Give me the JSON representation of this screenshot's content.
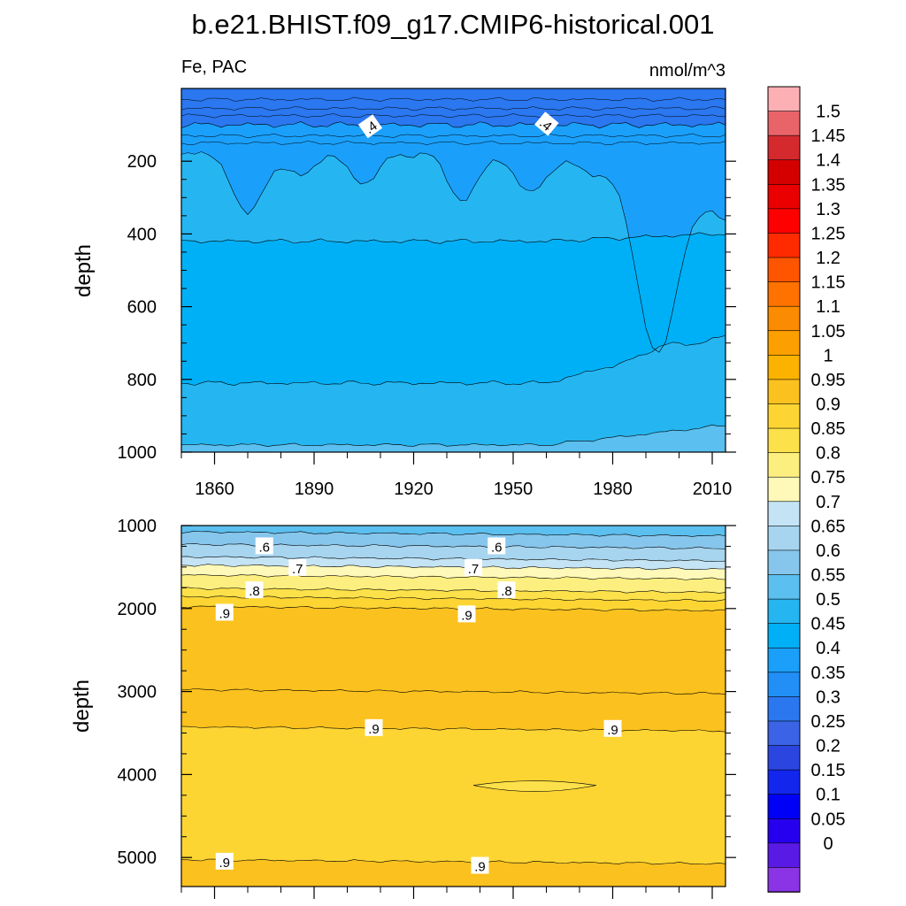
{
  "title": "b.e21.BHIST.f09_g17.CMIP6-historical.001",
  "chart_data": [
    {
      "type": "heatmap",
      "panel": "upper",
      "left_label": "Fe, PAC",
      "right_label": "nmol/m^3",
      "ylabel": "depth",
      "xlim": [
        1850,
        2014
      ],
      "ylim": [
        1000,
        0
      ],
      "x_ticks": [
        "1860",
        "1890",
        "1920",
        "1950",
        "1980",
        "2010"
      ],
      "y_ticks": [
        "200",
        "400",
        "600",
        "800",
        "1000"
      ],
      "contour_labels": [
        ".4",
        ".4"
      ],
      "bands": [
        {
          "from": 0,
          "to": 100,
          "value": 0.275
        },
        {
          "from": 100,
          "to": 180,
          "value": 0.35
        },
        {
          "from": 180,
          "to": 420,
          "value": 0.45
        },
        {
          "from": 420,
          "to": 810,
          "value": 0.4
        },
        {
          "from": 810,
          "to": 980,
          "value": 0.45
        },
        {
          "from": 980,
          "to": 1000,
          "value": 0.5
        }
      ]
    },
    {
      "type": "heatmap",
      "panel": "lower",
      "ylabel": "depth",
      "xlim": [
        1850,
        2014
      ],
      "ylim": [
        5350,
        1000
      ],
      "y_ticks": [
        "1000",
        "2000",
        "3000",
        "4000",
        "5000"
      ],
      "contour_labels": [
        ".6",
        ".6",
        ".7",
        ".7",
        ".8",
        ".8",
        ".9",
        ".9",
        ".9",
        ".9",
        ".9",
        ".9"
      ],
      "bands": [
        {
          "from": 1000,
          "to": 1100,
          "value": 0.525
        },
        {
          "from": 1100,
          "to": 1250,
          "value": 0.575
        },
        {
          "from": 1250,
          "to": 1400,
          "value": 0.625
        },
        {
          "from": 1400,
          "to": 1500,
          "value": 0.675
        },
        {
          "from": 1500,
          "to": 1620,
          "value": 0.725
        },
        {
          "from": 1620,
          "to": 1780,
          "value": 0.775
        },
        {
          "from": 1780,
          "to": 1880,
          "value": 0.825
        },
        {
          "from": 1880,
          "to": 2000,
          "value": 0.875
        },
        {
          "from": 2000,
          "to": 3000,
          "value": 0.925
        },
        {
          "from": 3000,
          "to": 3450,
          "value": 0.9
        },
        {
          "from": 3450,
          "to": 5050,
          "value": 0.875
        },
        {
          "from": 5050,
          "to": 5350,
          "value": 0.9
        }
      ]
    }
  ],
  "colorbar": {
    "labels": [
      "1.5",
      "1.45",
      "1.4",
      "1.35",
      "1.3",
      "1.25",
      "1.2",
      "1.15",
      "1.1",
      "1.05",
      "1",
      "0.95",
      "0.9",
      "0.85",
      "0.8",
      "0.75",
      "0.7",
      "0.65",
      "0.6",
      "0.55",
      "0.5",
      "0.45",
      "0.4",
      "0.35",
      "0.3",
      "0.25",
      "0.2",
      "0.15",
      "0.1",
      "0.05",
      "0"
    ],
    "colors": [
      "#fdb0b4",
      "#e96469",
      "#d42a2e",
      "#d40000",
      "#eb0000",
      "#ff0000",
      "#ff2a00",
      "#ff5500",
      "#ff7200",
      "#fb8b00",
      "#fba000",
      "#fbb200",
      "#fbc11e",
      "#fcd533",
      "#fde14a",
      "#fdef7f",
      "#fff9b9",
      "#c4e4f5",
      "#a7d5ef",
      "#87c6ec",
      "#5bbfef",
      "#25b6f1",
      "#00b0f6",
      "#1aa0fb",
      "#218ff6",
      "#2a77ef",
      "#3a63e5",
      "#2b45e0",
      "#1226ed",
      "#0000f6",
      "#2600ee",
      "#5a1ae5",
      "#8a34e6"
    ]
  }
}
